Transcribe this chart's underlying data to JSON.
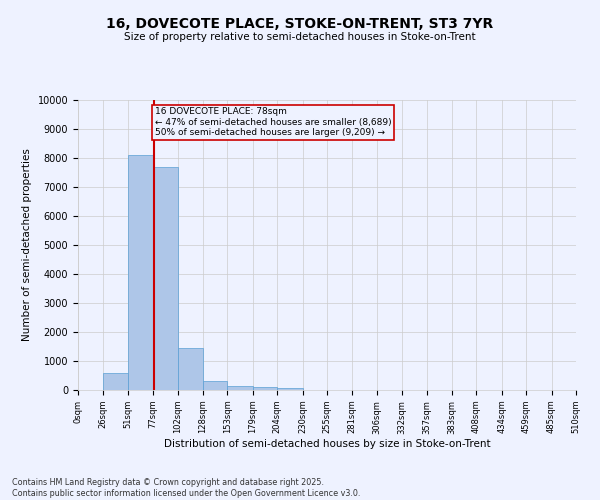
{
  "title": "16, DOVECOTE PLACE, STOKE-ON-TRENT, ST3 7YR",
  "subtitle": "Size of property relative to semi-detached houses in Stoke-on-Trent",
  "xlabel": "Distribution of semi-detached houses by size in Stoke-on-Trent",
  "ylabel": "Number of semi-detached properties",
  "bin_edges": [
    0,
    26,
    51,
    77,
    102,
    128,
    153,
    179,
    204,
    230,
    255,
    281,
    306,
    332,
    357,
    383,
    408,
    434,
    459,
    485,
    510
  ],
  "bar_heights": [
    0,
    600,
    8100,
    7700,
    1450,
    300,
    150,
    100,
    60,
    10,
    5,
    2,
    1,
    0,
    0,
    0,
    0,
    0,
    0,
    0
  ],
  "bar_color": "#aec6e8",
  "bar_edge_color": "#5a9fd4",
  "property_sqm": 78,
  "property_label": "16 DOVECOTE PLACE: 78sqm",
  "pct_smaller": 47,
  "n_smaller": 8689,
  "pct_larger": 50,
  "n_larger": 9209,
  "vline_color": "#cc0000",
  "annotation_box_color": "#cc0000",
  "ylim": [
    0,
    10000
  ],
  "yticks": [
    0,
    1000,
    2000,
    3000,
    4000,
    5000,
    6000,
    7000,
    8000,
    9000,
    10000
  ],
  "grid_color": "#cccccc",
  "bg_color": "#eef2ff",
  "footer_line1": "Contains HM Land Registry data © Crown copyright and database right 2025.",
  "footer_line2": "Contains public sector information licensed under the Open Government Licence v3.0."
}
